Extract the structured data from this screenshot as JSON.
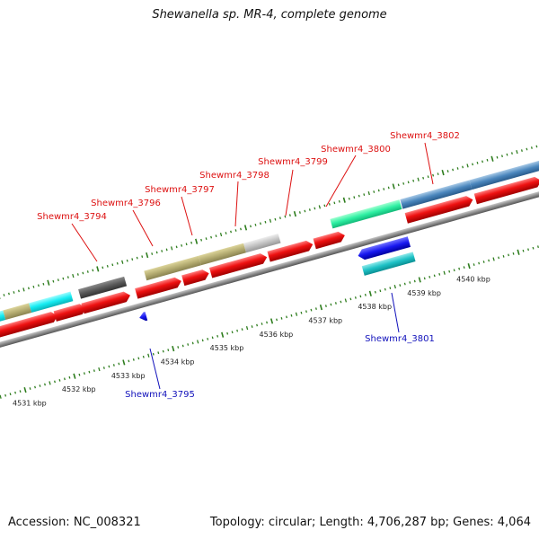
{
  "title": "Shewanella sp. MR-4, complete genome",
  "footer": {
    "accession": "Accession: NC_008321",
    "summary": "Topology: circular; Length: 4,706,287 bp; Genes: 4,064"
  },
  "colors": {
    "cds_red": "#ee1111",
    "tick_green": "#2e7d1e",
    "backbone": "#888888",
    "label_forward": "#dd1111",
    "label_reverse": "#1111bb"
  },
  "axis_ticks": [
    {
      "label": "4531 kbp"
    },
    {
      "label": "4532 kbp"
    },
    {
      "label": "4533 kbp"
    },
    {
      "label": "4534 kbp"
    },
    {
      "label": "4535 kbp"
    },
    {
      "label": "4536 kbp"
    },
    {
      "label": "4537 kbp"
    },
    {
      "label": "4538 kbp"
    },
    {
      "label": "4539 kbp"
    },
    {
      "label": "4540 kbp"
    }
  ],
  "gene_labels": [
    {
      "text": "Shewmr4_3794",
      "strand": "forward"
    },
    {
      "text": "Shewmr4_3796",
      "strand": "forward"
    },
    {
      "text": "Shewmr4_3797",
      "strand": "forward"
    },
    {
      "text": "Shewmr4_3798",
      "strand": "forward"
    },
    {
      "text": "Shewmr4_3799",
      "strand": "forward"
    },
    {
      "text": "Shewmr4_3800",
      "strand": "forward"
    },
    {
      "text": "Shewmr4_3802",
      "strand": "forward"
    },
    {
      "text": "Shewmr4_3801",
      "strand": "reverse"
    },
    {
      "text": "Shewmr4_3795",
      "strand": "reverse"
    }
  ]
}
